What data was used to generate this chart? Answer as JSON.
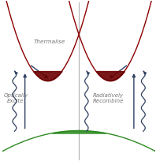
{
  "bg_color": "#ffffff",
  "conduction_color": "#8b0000",
  "valence_color": "#2e8b22",
  "bowl_fill_color": "#6b0000",
  "valence_fill_color": "#2e8b22",
  "divider_color": "#b0b0b0",
  "arrow_color": "#2f4060",
  "text_color": "#777777",
  "xlim": [
    -2.2,
    2.2
  ],
  "ylim": [
    -1.8,
    2.8
  ],
  "left_min_x": -0.9,
  "right_min_x": 0.9,
  "cond_a": 1.6,
  "cond_y0": 0.55,
  "val_a": -0.12,
  "val_y0": -0.85,
  "bowl_flat": 0.82,
  "val_flat": -0.92
}
